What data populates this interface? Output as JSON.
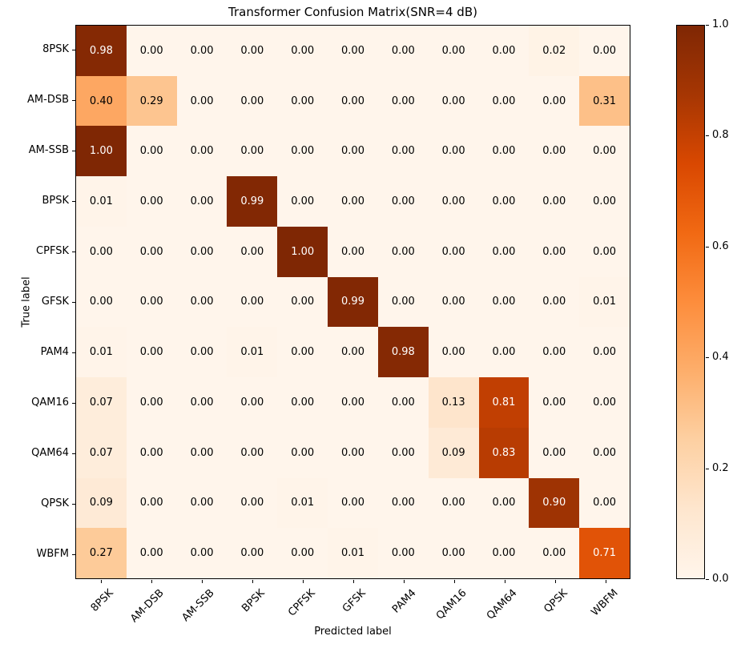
{
  "chart_data": {
    "type": "heatmap",
    "title": "Transformer Confusion Matrix(SNR=4 dB)",
    "xlabel": "Predicted label",
    "ylabel": "True label",
    "categories": [
      "8PSK",
      "AM-DSB",
      "AM-SSB",
      "BPSK",
      "CPFSK",
      "GFSK",
      "PAM4",
      "QAM16",
      "QAM64",
      "QPSK",
      "WBFM"
    ],
    "matrix": [
      [
        0.98,
        0.0,
        0.0,
        0.0,
        0.0,
        0.0,
        0.0,
        0.0,
        0.0,
        0.02,
        0.0
      ],
      [
        0.4,
        0.29,
        0.0,
        0.0,
        0.0,
        0.0,
        0.0,
        0.0,
        0.0,
        0.0,
        0.31
      ],
      [
        1.0,
        0.0,
        0.0,
        0.0,
        0.0,
        0.0,
        0.0,
        0.0,
        0.0,
        0.0,
        0.0
      ],
      [
        0.01,
        0.0,
        0.0,
        0.99,
        0.0,
        0.0,
        0.0,
        0.0,
        0.0,
        0.0,
        0.0
      ],
      [
        0.0,
        0.0,
        0.0,
        0.0,
        1.0,
        0.0,
        0.0,
        0.0,
        0.0,
        0.0,
        0.0
      ],
      [
        0.0,
        0.0,
        0.0,
        0.0,
        0.0,
        0.99,
        0.0,
        0.0,
        0.0,
        0.0,
        0.01
      ],
      [
        0.01,
        0.0,
        0.0,
        0.01,
        0.0,
        0.0,
        0.98,
        0.0,
        0.0,
        0.0,
        0.0
      ],
      [
        0.07,
        0.0,
        0.0,
        0.0,
        0.0,
        0.0,
        0.0,
        0.13,
        0.81,
        0.0,
        0.0
      ],
      [
        0.07,
        0.0,
        0.0,
        0.0,
        0.0,
        0.0,
        0.0,
        0.09,
        0.83,
        0.0,
        0.0
      ],
      [
        0.09,
        0.0,
        0.0,
        0.0,
        0.01,
        0.0,
        0.0,
        0.0,
        0.0,
        0.9,
        0.0
      ],
      [
        0.27,
        0.0,
        0.0,
        0.0,
        0.0,
        0.01,
        0.0,
        0.0,
        0.0,
        0.0,
        0.71
      ]
    ],
    "value_format_decimals": 2,
    "colormap": "Oranges",
    "grid": false,
    "value_range": [
      0.0,
      1.0
    ],
    "colorbar": {
      "position": "right",
      "min": 0.0,
      "max": 1.0,
      "tick_values": [
        0.0,
        0.2,
        0.4,
        0.6,
        0.8,
        1.0
      ],
      "tick_labels": [
        "0.0",
        "0.2",
        "0.4",
        "0.6",
        "0.8",
        "1.0"
      ]
    }
  },
  "colors": {
    "background": "#ffffff",
    "axis": "#000000",
    "cell_text_dark": "#000000",
    "cell_text_light": "#ffffff",
    "colormap_anchors": [
      "#fff5eb",
      "#fee6ce",
      "#fdd0a2",
      "#fdae6b",
      "#fd8d3c",
      "#f16913",
      "#d94801",
      "#a63603",
      "#7f2704"
    ],
    "light_text_threshold": 0.5
  }
}
